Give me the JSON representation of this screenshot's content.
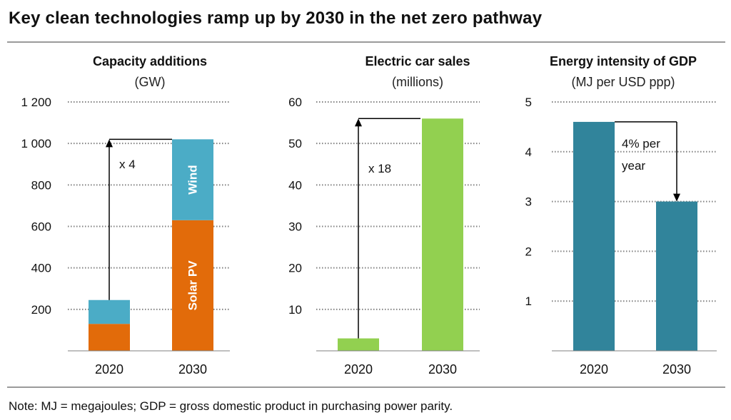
{
  "header": {
    "title": "Key clean technologies ramp up by 2030 in the net zero pathway"
  },
  "footer": {
    "note": "Note: MJ = megajoules; GDP = gross domestic product in purchasing power parity."
  },
  "colors": {
    "solar": "#E26B0A",
    "wind": "#4BACC6",
    "ev": "#92D050",
    "intensity": "#31849B",
    "grid": "#808080",
    "axis": "#7f7f7f"
  },
  "chart_data": [
    {
      "type": "bar",
      "stacked": true,
      "title": "Capacity additions",
      "unit": "(GW)",
      "categories": [
        "2020",
        "2030"
      ],
      "series": [
        {
          "name": "Solar PV",
          "values": [
            130,
            630
          ]
        },
        {
          "name": "Wind",
          "values": [
            115,
            390
          ]
        }
      ],
      "ylim": [
        0,
        1200
      ],
      "yticks": [
        200,
        400,
        600,
        800,
        1000,
        1200
      ],
      "ytick_labels": [
        "200",
        "400",
        "600",
        "800",
        "1 000",
        "1 200"
      ],
      "grid": true,
      "annotation": {
        "text": "x 4",
        "from": 245,
        "to": 1020
      }
    },
    {
      "type": "bar",
      "title": "Electric car sales",
      "unit": "(millions)",
      "categories": [
        "2020",
        "2030"
      ],
      "values": [
        3,
        56
      ],
      "ylim": [
        0,
        60
      ],
      "yticks": [
        10,
        20,
        30,
        40,
        50,
        60
      ],
      "ytick_labels": [
        "10",
        "20",
        "30",
        "40",
        "50",
        "60"
      ],
      "grid": true,
      "annotation": {
        "text": "x 18",
        "from": 3,
        "to": 56
      }
    },
    {
      "type": "bar",
      "title": "Energy intensity of GDP",
      "unit": "(MJ per USD ppp)",
      "categories": [
        "2020",
        "2030"
      ],
      "values": [
        4.6,
        3.0
      ],
      "ylim": [
        0,
        5
      ],
      "yticks": [
        1,
        2,
        3,
        4,
        5
      ],
      "ytick_labels": [
        "1",
        "2",
        "3",
        "4",
        "5"
      ],
      "grid": true,
      "annotation": {
        "text_line1": "4% per",
        "text_line2": "year",
        "from": 4.6,
        "to": 3.0
      }
    }
  ]
}
